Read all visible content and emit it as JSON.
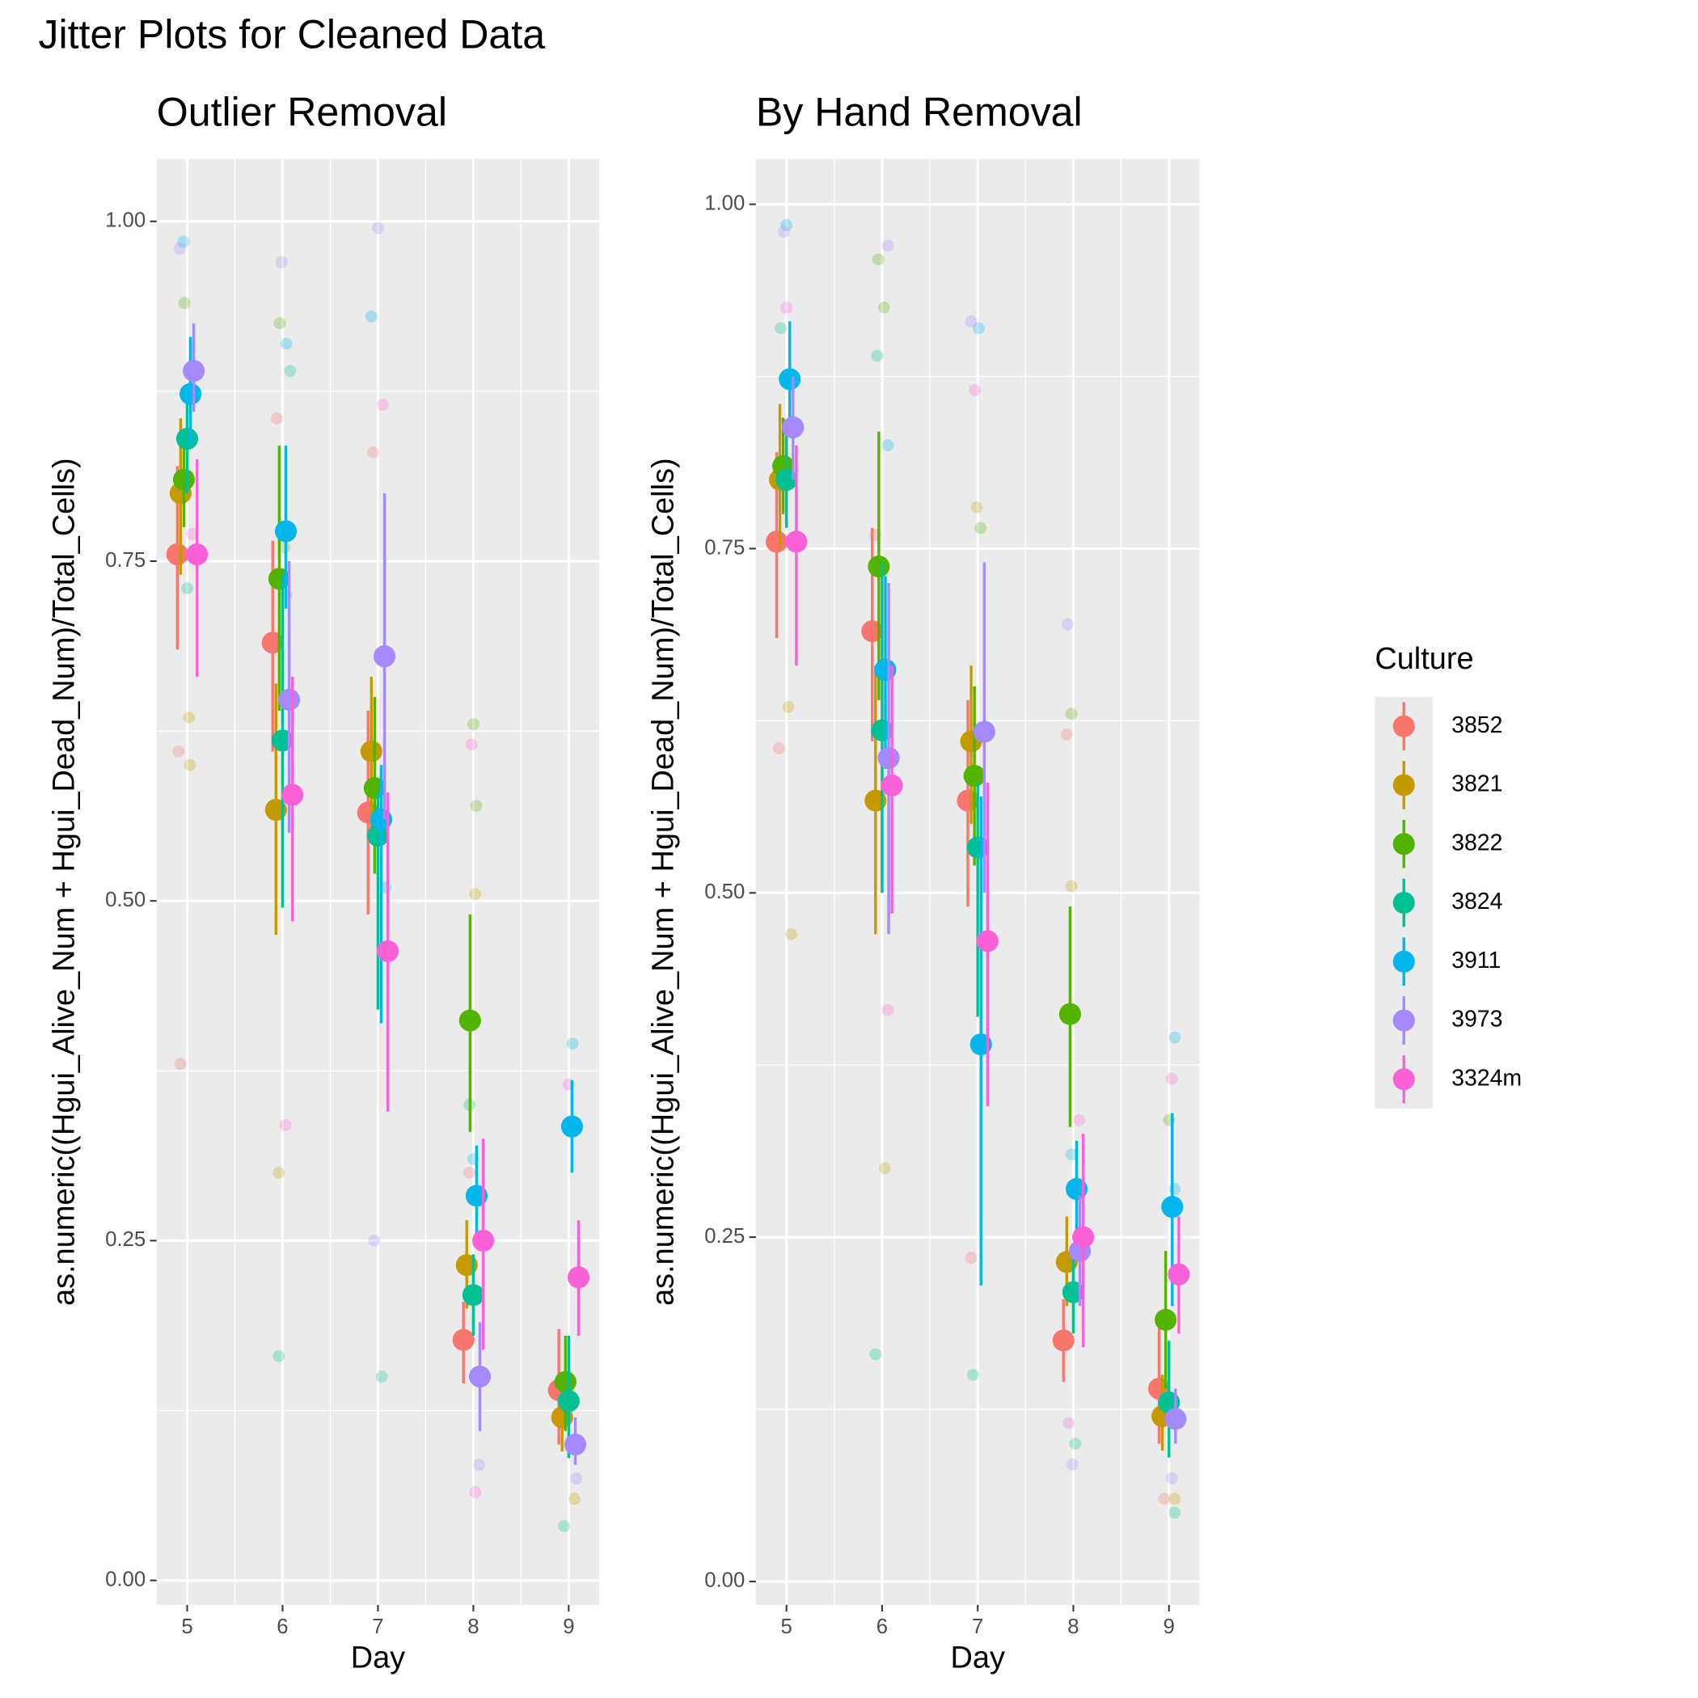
{
  "title": "Jitter Plots for Cleaned Data",
  "legend": {
    "title": "Culture",
    "names": [
      "3852",
      "3821",
      "3822",
      "3824",
      "3911",
      "3973",
      "3324m"
    ],
    "colors": [
      "#F8766D",
      "#C49A00",
      "#53B400",
      "#00C094",
      "#00B6EB",
      "#A58AFF",
      "#FB61D7"
    ]
  },
  "chart_data": [
    {
      "type": "jitter",
      "title": "Outlier Removal",
      "x_label": "Day",
      "y_label": "as.numeric((Hgui_Alive_Num + Hgui_Dead_Num)/Total_Cells)",
      "x": [
        5,
        6,
        7,
        8,
        9
      ],
      "xlim": [
        4.68,
        9.32
      ],
      "ylim": [
        -0.018,
        1.046
      ],
      "yticks": [
        {
          "value": 0,
          "label": "0.00"
        },
        {
          "value": 0.25,
          "label": "0.25"
        },
        {
          "value": 0.5,
          "label": "0.50"
        },
        {
          "value": 0.75,
          "label": "0.75"
        },
        {
          "value": 1,
          "label": "1.00"
        }
      ],
      "grid": true,
      "series": [
        {
          "values": [
            0.755,
            0.69,
            0.565,
            0.177,
            0.14
          ],
          "lower": [
            0.685,
            0.61,
            0.49,
            0.145,
            0.1
          ],
          "upper": [
            0.82,
            0.765,
            0.64,
            0.205,
            0.185
          ],
          "raw_x": [
            4.91,
            4.93,
            5.94,
            6.95,
            7.96,
            8.94
          ],
          "raw_values": [
            0.61,
            0.38,
            0.855,
            0.83,
            0.3,
            0.14
          ]
        },
        {
          "values": [
            0.8,
            0.567,
            0.61,
            0.232,
            0.12
          ],
          "lower": [
            0.74,
            0.475,
            0.55,
            0.2,
            0.095
          ],
          "upper": [
            0.855,
            0.66,
            0.665,
            0.265,
            0.15
          ],
          "raw_x": [
            5.02,
            5.03,
            5.96,
            6.04,
            8.02,
            9.06
          ],
          "raw_values": [
            0.635,
            0.6,
            0.3,
            0.725,
            0.505,
            0.06
          ]
        },
        {
          "values": [
            0.81,
            0.737,
            0.583,
            0.412,
            0.146
          ],
          "lower": [
            0.775,
            0.64,
            0.52,
            0.33,
            0.11
          ],
          "upper": [
            0.845,
            0.835,
            0.65,
            0.49,
            0.18
          ],
          "raw_x": [
            4.97,
            5.97,
            6.02,
            8.0,
            8.03,
            9.0
          ],
          "raw_values": [
            0.94,
            0.925,
            0.76,
            0.63,
            0.57,
            0.145
          ]
        },
        {
          "values": [
            0.84,
            0.618,
            0.548,
            0.21,
            0.132
          ],
          "lower": [
            0.8,
            0.495,
            0.42,
            0.18,
            0.09
          ],
          "upper": [
            0.875,
            0.74,
            0.58,
            0.24,
            0.18
          ],
          "raw_x": [
            5.0,
            5.96,
            6.08,
            7.04,
            7.96,
            8.95
          ],
          "raw_values": [
            0.73,
            0.165,
            0.89,
            0.15,
            0.35,
            0.04
          ]
        },
        {
          "values": [
            0.873,
            0.772,
            0.56,
            0.283,
            0.334
          ],
          "lower": [
            0.835,
            0.715,
            0.41,
            0.25,
            0.3
          ],
          "upper": [
            0.915,
            0.835,
            0.6,
            0.32,
            0.368
          ],
          "raw_x": [
            4.96,
            6.04,
            6.93,
            7.08,
            8.0,
            9.04
          ],
          "raw_values": [
            0.985,
            0.91,
            0.93,
            0.51,
            0.31,
            0.395
          ]
        },
        {
          "values": [
            0.89,
            0.648,
            0.68,
            0.15,
            0.1
          ],
          "lower": [
            0.86,
            0.55,
            0.56,
            0.11,
            0.085
          ],
          "upper": [
            0.925,
            0.75,
            0.8,
            0.19,
            0.12
          ],
          "raw_x": [
            4.92,
            5.99,
            7.0,
            6.96,
            8.06,
            9.08
          ],
          "raw_values": [
            0.98,
            0.97,
            0.995,
            0.25,
            0.085,
            0.075
          ]
        },
        {
          "values": [
            0.755,
            0.578,
            0.463,
            0.25,
            0.223
          ],
          "lower": [
            0.665,
            0.485,
            0.345,
            0.17,
            0.18
          ],
          "upper": [
            0.825,
            0.665,
            0.58,
            0.325,
            0.265
          ],
          "raw_x": [
            5.05,
            6.03,
            7.05,
            7.98,
            8.02,
            9.0
          ],
          "raw_values": [
            0.77,
            0.335,
            0.865,
            0.615,
            0.065,
            0.365
          ]
        }
      ]
    },
    {
      "type": "jitter",
      "title": "By Hand Removal",
      "x_label": "Day",
      "y_label": "as.numeric((Hgui_Alive_Num + Hgui_Dead_Num)/Total_Cells)",
      "x": [
        5,
        6,
        7,
        8,
        9
      ],
      "xlim": [
        4.68,
        9.32
      ],
      "ylim": [
        -0.017,
        1.033
      ],
      "yticks": [
        {
          "value": 0,
          "label": "0.00"
        },
        {
          "value": 0.25,
          "label": "0.25"
        },
        {
          "value": 0.5,
          "label": "0.50"
        },
        {
          "value": 0.75,
          "label": "0.75"
        },
        {
          "value": 1,
          "label": "1.00"
        }
      ],
      "grid": true,
      "series": [
        {
          "values": [
            0.755,
            0.69,
            0.567,
            0.175,
            0.14
          ],
          "lower": [
            0.685,
            0.61,
            0.49,
            0.145,
            0.1
          ],
          "upper": [
            0.82,
            0.765,
            0.64,
            0.205,
            0.185
          ],
          "raw_x": [
            4.92,
            5.93,
            6.93,
            7.93,
            8.95
          ],
          "raw_values": [
            0.605,
            0.76,
            0.235,
            0.615,
            0.06
          ]
        },
        {
          "values": [
            0.8,
            0.567,
            0.61,
            0.232,
            0.12
          ],
          "lower": [
            0.75,
            0.47,
            0.55,
            0.2,
            0.095
          ],
          "upper": [
            0.855,
            0.665,
            0.665,
            0.265,
            0.15
          ],
          "raw_x": [
            5.02,
            5.05,
            6.03,
            6.99,
            7.98,
            9.06
          ],
          "raw_values": [
            0.635,
            0.47,
            0.3,
            0.78,
            0.505,
            0.06
          ]
        },
        {
          "values": [
            0.81,
            0.737,
            0.585,
            0.412,
            0.19
          ],
          "lower": [
            0.775,
            0.64,
            0.52,
            0.33,
            0.14
          ],
          "upper": [
            0.845,
            0.835,
            0.65,
            0.49,
            0.24
          ],
          "raw_x": [
            5.0,
            5.96,
            6.02,
            7.03,
            7.98,
            9.0
          ],
          "raw_values": [
            0.8,
            0.96,
            0.925,
            0.765,
            0.63,
            0.335
          ]
        },
        {
          "values": [
            0.8,
            0.618,
            0.533,
            0.21,
            0.13
          ],
          "lower": [
            0.765,
            0.5,
            0.41,
            0.18,
            0.09
          ],
          "upper": [
            0.84,
            0.74,
            0.58,
            0.24,
            0.175
          ],
          "raw_x": [
            4.94,
            5.95,
            5.93,
            6.95,
            8.02,
            9.06
          ],
          "raw_values": [
            0.91,
            0.89,
            0.165,
            0.15,
            0.1,
            0.05
          ]
        },
        {
          "values": [
            0.873,
            0.662,
            0.39,
            0.285,
            0.272
          ],
          "lower": [
            0.835,
            0.59,
            0.215,
            0.25,
            0.2
          ],
          "upper": [
            0.915,
            0.73,
            0.57,
            0.32,
            0.34
          ],
          "raw_x": [
            5.0,
            6.06,
            7.01,
            7.98,
            9.06,
            9.06
          ],
          "raw_values": [
            0.985,
            0.825,
            0.91,
            0.31,
            0.395,
            0.285
          ]
        },
        {
          "values": [
            0.838,
            0.598,
            0.617,
            0.24,
            0.118
          ],
          "lower": [
            0.8,
            0.47,
            0.5,
            0.2,
            0.1
          ],
          "upper": [
            0.875,
            0.725,
            0.74,
            0.28,
            0.14
          ],
          "raw_x": [
            4.97,
            6.06,
            6.93,
            7.94,
            7.99,
            9.03
          ],
          "raw_values": [
            0.98,
            0.97,
            0.915,
            0.695,
            0.085,
            0.075
          ]
        },
        {
          "values": [
            0.755,
            0.578,
            0.465,
            0.25,
            0.223
          ],
          "lower": [
            0.665,
            0.485,
            0.345,
            0.17,
            0.18
          ],
          "upper": [
            0.825,
            0.665,
            0.58,
            0.325,
            0.265
          ],
          "raw_x": [
            5.0,
            6.06,
            6.97,
            7.95,
            8.06,
            9.03
          ],
          "raw_values": [
            0.925,
            0.415,
            0.865,
            0.115,
            0.335,
            0.365
          ]
        }
      ]
    }
  ]
}
